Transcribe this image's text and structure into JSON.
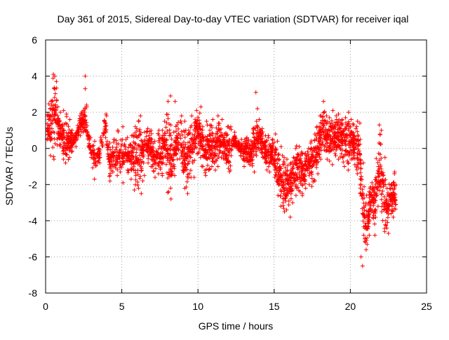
{
  "chart_data": {
    "type": "scatter",
    "title": "Day 361 of 2015, Sidereal Day-to-day VTEC variation (SDTVAR) for receiver iqal",
    "xlabel": "GPS time / hours",
    "ylabel": "SDTVAR / TECUs",
    "xlim": [
      0,
      25
    ],
    "ylim": [
      -8,
      6
    ],
    "xticks": [
      0,
      5,
      10,
      15,
      20,
      25
    ],
    "yticks": [
      -8,
      -6,
      -4,
      -2,
      0,
      2,
      4,
      6
    ],
    "grid": true,
    "marker": "+",
    "series_color": "#ff0000",
    "series": [
      {
        "name": "SDTVAR",
        "envelope": [
          [
            0.1,
            0.5,
            1.8
          ],
          [
            0.3,
            -0.4,
            2.6
          ],
          [
            0.5,
            -0.6,
            4.1
          ],
          [
            0.7,
            0.5,
            3.7
          ],
          [
            0.9,
            0.2,
            2.0
          ],
          [
            1.1,
            -0.6,
            2.1
          ],
          [
            1.3,
            -0.8,
            1.9
          ],
          [
            1.5,
            -0.5,
            1.6
          ],
          [
            1.7,
            -0.2,
            1.0
          ],
          [
            1.9,
            0.1,
            0.8
          ],
          [
            2.2,
            0.7,
            1.8
          ],
          [
            2.4,
            0.9,
            2.1
          ],
          [
            2.6,
            1.0,
            2.4
          ],
          [
            2.9,
            -0.5,
            0.6
          ],
          [
            3.2,
            -1.7,
            0.4
          ],
          [
            3.5,
            -0.8,
            0.0
          ],
          [
            3.9,
            0.6,
            1.9
          ],
          [
            4.2,
            -1.8,
            0.3
          ],
          [
            4.4,
            -1.3,
            0.5
          ],
          [
            4.7,
            -1.5,
            1.0
          ],
          [
            5.0,
            -1.9,
            1.2
          ],
          [
            5.3,
            -1.2,
            0.6
          ],
          [
            5.6,
            -1.7,
            0.7
          ],
          [
            5.8,
            -2.3,
            1.2
          ],
          [
            6.0,
            -2.2,
            1.5
          ],
          [
            6.2,
            -2.5,
            1.8
          ],
          [
            6.4,
            -1.5,
            0.9
          ],
          [
            6.7,
            -0.8,
            1.1
          ],
          [
            6.9,
            -1.0,
            1.0
          ],
          [
            7.1,
            -1.6,
            0.4
          ],
          [
            7.4,
            -1.4,
            1.0
          ],
          [
            7.6,
            -1.5,
            1.0
          ],
          [
            7.8,
            -0.4,
            1.5
          ],
          [
            8.0,
            -2.4,
            2.6
          ],
          [
            8.2,
            -2.8,
            1.3
          ],
          [
            8.4,
            -1.5,
            0.9
          ],
          [
            8.6,
            -0.6,
            1.3
          ],
          [
            8.9,
            -1.2,
            1.8
          ],
          [
            9.1,
            -2.2,
            1.5
          ],
          [
            9.3,
            -2.5,
            1.0
          ],
          [
            9.5,
            -1.6,
            1.8
          ],
          [
            9.7,
            -1.6,
            1.4
          ],
          [
            9.9,
            -0.3,
            2.1
          ],
          [
            10.1,
            -0.5,
            2.3
          ],
          [
            10.3,
            -1.0,
            1.2
          ],
          [
            10.5,
            -1.5,
            1.5
          ],
          [
            10.7,
            -1.2,
            1.0
          ],
          [
            10.9,
            -1.0,
            1.6
          ],
          [
            11.1,
            -1.2,
            0.6
          ],
          [
            11.3,
            -1.0,
            1.8
          ],
          [
            11.5,
            -0.5,
            1.6
          ],
          [
            11.7,
            -0.6,
            0.8
          ],
          [
            11.9,
            -1.1,
            1.2
          ],
          [
            12.1,
            -1.2,
            1.2
          ],
          [
            12.4,
            0.1,
            0.9
          ],
          [
            12.6,
            -0.1,
            0.4
          ],
          [
            12.8,
            -0.4,
            0.5
          ],
          [
            13.0,
            -1.0,
            0.5
          ],
          [
            13.2,
            -0.7,
            0.6
          ],
          [
            13.4,
            -0.9,
            0.4
          ],
          [
            13.6,
            -1.3,
            1.1
          ],
          [
            13.8,
            -0.4,
            1.5
          ],
          [
            14.0,
            -0.1,
            1.6
          ],
          [
            14.2,
            -0.5,
            1.1
          ],
          [
            14.4,
            -0.8,
            0.7
          ],
          [
            14.6,
            -1.3,
            0.6
          ],
          [
            14.8,
            -0.8,
            0.5
          ],
          [
            15.0,
            -1.6,
            0.8
          ],
          [
            15.2,
            -2.6,
            0.4
          ],
          [
            15.4,
            -3.2,
            0.1
          ],
          [
            15.6,
            -3.5,
            -0.5
          ],
          [
            15.8,
            -3.4,
            -0.6
          ],
          [
            16.0,
            -3.8,
            -0.8
          ],
          [
            16.2,
            -3.0,
            -0.5
          ],
          [
            16.4,
            -2.6,
            0.0
          ],
          [
            16.6,
            -2.4,
            0.1
          ],
          [
            16.8,
            -2.6,
            -0.2
          ],
          [
            17.0,
            -2.2,
            -0.3
          ],
          [
            17.2,
            -2.0,
            0.0
          ],
          [
            17.4,
            -2.1,
            0.3
          ],
          [
            17.6,
            -1.8,
            0.8
          ],
          [
            17.8,
            -1.4,
            1.2
          ],
          [
            18.0,
            -0.6,
            1.8
          ],
          [
            18.2,
            0.2,
            2.6
          ],
          [
            18.4,
            -0.6,
            1.8
          ],
          [
            18.6,
            -0.7,
            1.7
          ],
          [
            18.8,
            -0.9,
            2.1
          ],
          [
            19.0,
            -0.4,
            1.8
          ],
          [
            19.2,
            -0.6,
            1.9
          ],
          [
            19.4,
            -0.3,
            1.6
          ],
          [
            19.6,
            -1.0,
            1.7
          ],
          [
            19.8,
            -1.2,
            2.0
          ],
          [
            20.0,
            -0.6,
            1.6
          ],
          [
            20.2,
            -0.9,
            1.3
          ],
          [
            20.4,
            -1.4,
            1.5
          ],
          [
            20.6,
            -2.5,
            1.4
          ],
          [
            20.8,
            -4.8,
            -0.8
          ],
          [
            21.0,
            -5.6,
            -2.6
          ],
          [
            21.2,
            -4.8,
            -2.2
          ],
          [
            21.4,
            -3.4,
            -1.9
          ],
          [
            21.6,
            -4.8,
            -1.6
          ],
          [
            21.8,
            -3.2,
            0.3
          ],
          [
            22.0,
            -3.5,
            1.0
          ],
          [
            22.2,
            -4.6,
            -0.5
          ],
          [
            22.4,
            -4.7,
            -2.2
          ],
          [
            22.6,
            -3.6,
            -2.0
          ],
          [
            22.8,
            -3.8,
            -1.4
          ],
          [
            23.0,
            -4.0,
            -1.1
          ]
        ],
        "outliers": [
          [
            0.2,
            1.6
          ],
          [
            0.6,
            4.0
          ],
          [
            2.6,
            4.0
          ],
          [
            2.6,
            3.3
          ],
          [
            2.7,
            2.3
          ],
          [
            4.0,
            1.8
          ],
          [
            8.2,
            2.9
          ],
          [
            8.5,
            2.6
          ],
          [
            13.8,
            3.1
          ],
          [
            13.9,
            2.2
          ],
          [
            20.7,
            -6.0
          ],
          [
            20.8,
            -6.5
          ],
          [
            21.1,
            -5.3
          ],
          [
            21.9,
            1.3
          ]
        ]
      }
    ]
  }
}
